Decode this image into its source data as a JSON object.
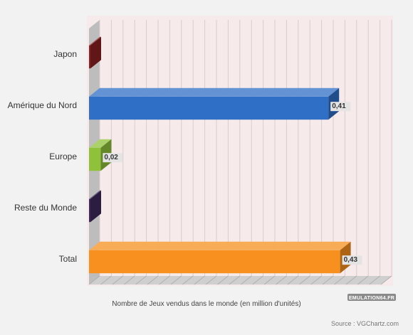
{
  "chart_data": {
    "type": "bar",
    "orientation": "horizontal",
    "categories": [
      "Japon",
      "Amérique du Nord",
      "Europe",
      "Reste du Monde",
      "Total"
    ],
    "values": [
      0,
      0.41,
      0.02,
      0,
      0.43
    ],
    "value_labels": [
      "",
      "0,41",
      "0,02",
      "",
      "0,43"
    ],
    "colors": [
      "#8b2121",
      "#2f6fc6",
      "#8fc23a",
      "#3d2a5c",
      "#f7901e"
    ],
    "title": "",
    "xlabel": "Nombre de Jeux vendus dans le monde (en million d'unités)",
    "ylabel": "",
    "xlim": [
      0,
      0.5
    ],
    "grid": true,
    "legend": "none",
    "style": "3d"
  },
  "source_text": "Source : VGChartz.com",
  "watermark_text": "EMULATION64.FR",
  "colors": {
    "background": "#f2f2f2",
    "plot_background": "#f7eaea",
    "grid": "#d9cccc",
    "value_label_bg": "#e4e4e4"
  }
}
